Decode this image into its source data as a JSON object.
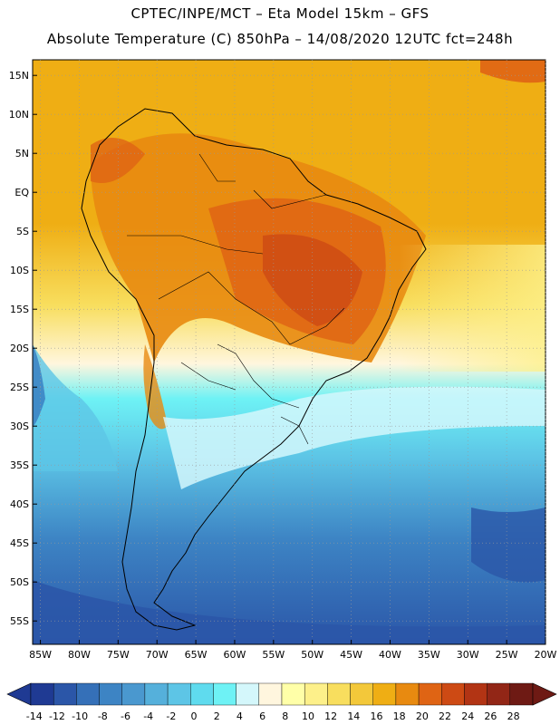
{
  "header": {
    "line1": "CPTEC/INPE/MCT –  Eta Model 15km – GFS",
    "line2": "Absolute Temperature (C) 850hPa – 14/08/2020 12UTC fct=248h"
  },
  "map": {
    "lat_labels": [
      "15N",
      "10N",
      "5N",
      "EQ",
      "5S",
      "10S",
      "15S",
      "20S",
      "25S",
      "30S",
      "35S",
      "40S",
      "45S",
      "50S",
      "55S"
    ],
    "lon_labels": [
      "85W",
      "80W",
      "75W",
      "70W",
      "65W",
      "60W",
      "55W",
      "50W",
      "45W",
      "40W",
      "35W",
      "30W",
      "25W",
      "20W"
    ],
    "grid": "dotted"
  },
  "colorbar": {
    "levels": [
      "-14",
      "-12",
      "-10",
      "-8",
      "-6",
      "-4",
      "-2",
      "0",
      "2",
      "4",
      "6",
      "8",
      "10",
      "12",
      "14",
      "16",
      "18",
      "20",
      "22",
      "24",
      "26",
      "28"
    ],
    "colors": [
      "#1f3a93",
      "#2b56a8",
      "#3570b8",
      "#3d84c4",
      "#4a98cf",
      "#55b0db",
      "#5dc5e6",
      "#5fdbee",
      "#6ef2f5",
      "#d4f7fb",
      "#fff6de",
      "#ffffa8",
      "#fdf08a",
      "#f8de5e",
      "#f3c83a",
      "#efae14",
      "#e88a10",
      "#df6414",
      "#cd4a14",
      "#b23414",
      "#922616",
      "#6e1a14"
    ]
  }
}
